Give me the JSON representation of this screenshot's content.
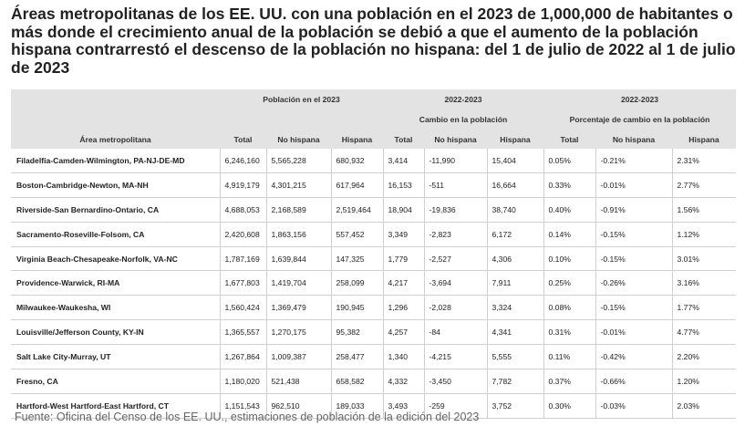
{
  "title": "Áreas metropolitanas de los EE. UU. con una población en el 2023 de 1,000,000 de habitantes o más donde el crecimiento anual de la población se debió a que el aumento de la población hispana contrarrestó el descenso de la población no hispana: del 1 de julio de 2022 al 1 de julio de 2023",
  "table": {
    "group_population": "Población en el 2023",
    "group_change_period": "2022-2023",
    "group_change": "Cambio en la población",
    "group_pct_period": "2022-2023",
    "group_pct": "Porcentaje de cambio en la población",
    "col_area": "Área metropolitana",
    "col_total": "Total",
    "col_nonhisp": "No hispana",
    "col_hisp": "Hispana",
    "rows": [
      [
        "Filadelfia-Camden-Wilmington, PA-NJ-DE-MD",
        "6,246,160",
        "5,565,228",
        "680,932",
        "3,414",
        "-11,990",
        "15,404",
        "0.05%",
        "-0.21%",
        "2.31%"
      ],
      [
        "Boston-Cambridge-Newton, MA-NH",
        "4,919,179",
        "4,301,215",
        "617,964",
        "16,153",
        "-511",
        "16,664",
        "0.33%",
        "-0.01%",
        "2.77%"
      ],
      [
        "Riverside-San Bernardino-Ontario, CA",
        "4,688,053",
        "2,168,589",
        "2,519,464",
        "18,904",
        "-19,836",
        "38,740",
        "0.40%",
        "-0.91%",
        "1.56%"
      ],
      [
        "Sacramento-Roseville-Folsom, CA",
        "2,420,608",
        "1,863,156",
        "557,452",
        "3,349",
        "-2,823",
        "6,172",
        "0.14%",
        "-0.15%",
        "1.12%"
      ],
      [
        "Virginia Beach-Chesapeake-Norfolk, VA-NC",
        "1,787,169",
        "1,639,844",
        "147,325",
        "1,779",
        "-2,527",
        "4,306",
        "0.10%",
        "-0.15%",
        "3.01%"
      ],
      [
        "Providence-Warwick, RI-MA",
        "1,677,803",
        "1,419,704",
        "258,099",
        "4,217",
        "-3,694",
        "7,911",
        "0.25%",
        "-0.26%",
        "3.16%"
      ],
      [
        "Milwaukee-Waukesha, WI",
        "1,560,424",
        "1,369,479",
        "190,945",
        "1,296",
        "-2,028",
        "3,324",
        "0.08%",
        "-0.15%",
        "1.77%"
      ],
      [
        "Louisville/Jefferson County, KY-IN",
        "1,365,557",
        "1,270,175",
        "95,382",
        "4,257",
        "-84",
        "4,341",
        "0.31%",
        "-0.01%",
        "4.77%"
      ],
      [
        "Salt Lake City-Murray, UT",
        "1,267,864",
        "1,009,387",
        "258,477",
        "1,340",
        "-4,215",
        "5,555",
        "0.11%",
        "-0.42%",
        "2.20%"
      ],
      [
        "Fresno, CA",
        "1,180,020",
        "521,438",
        "658,582",
        "4,332",
        "-3,450",
        "7,782",
        "0.37%",
        "-0.66%",
        "1.20%"
      ],
      [
        "Hartford-West Hartford-East Hartford, CT",
        "1,151,543",
        "962,510",
        "189,033",
        "3,493",
        "-259",
        "3,752",
        "0.30%",
        "-0.03%",
        "2.03%"
      ]
    ]
  },
  "source": "Fuente: Oficina del Censo de los EE. UU., estimaciones de población de la edición del 2023"
}
